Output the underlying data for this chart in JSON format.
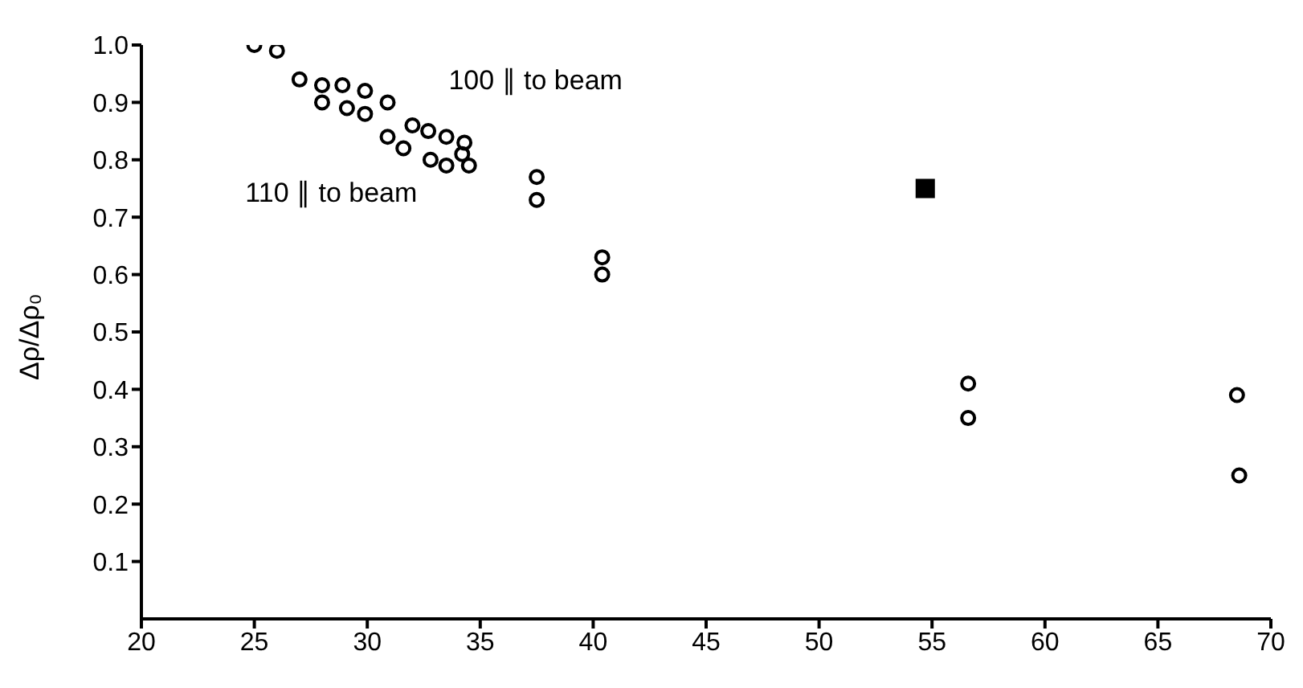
{
  "chart_data": {
    "type": "scatter",
    "ylabel": "Δρ/Δρ₀",
    "xlim": [
      20,
      70
    ],
    "xticks": [
      20,
      25,
      30,
      35,
      40,
      45,
      50,
      55,
      60,
      65,
      70
    ],
    "ylim": [
      0,
      1.0
    ],
    "yticks": [
      0.1,
      0.2,
      0.3,
      0.4,
      0.5,
      0.6,
      0.7,
      0.8,
      0.9,
      {
        "value": 1.0,
        "label": "1.0"
      }
    ],
    "series": [
      {
        "color": "#000000",
        "marker": "circle",
        "x": [
          25,
          26,
          27,
          28,
          28,
          28.9,
          29.1,
          29.9,
          29.9,
          30.9,
          30.9,
          31.6,
          32,
          32.7,
          32.8,
          33.5,
          33.5,
          34.3,
          34.2,
          34.5,
          37.5,
          37.5,
          40.4,
          40.4,
          56.6,
          56.6,
          68.5,
          68.6
        ],
        "values": [
          1.0,
          0.99,
          0.94,
          0.93,
          0.9,
          0.93,
          0.89,
          0.92,
          0.88,
          0.9,
          0.84,
          0.82,
          0.86,
          0.85,
          0.8,
          0.84,
          0.79,
          0.83,
          0.81,
          0.79,
          0.77,
          0.73,
          0.63,
          0.6,
          0.41,
          0.35,
          0.39,
          0.25
        ]
      },
      {
        "color": "#000000",
        "marker": "square",
        "x": [
          54.7
        ],
        "values": [
          0.75
        ]
      }
    ],
    "annotations": [
      "100 ∥ to beam",
      "110 ∥ to beam"
    ]
  }
}
